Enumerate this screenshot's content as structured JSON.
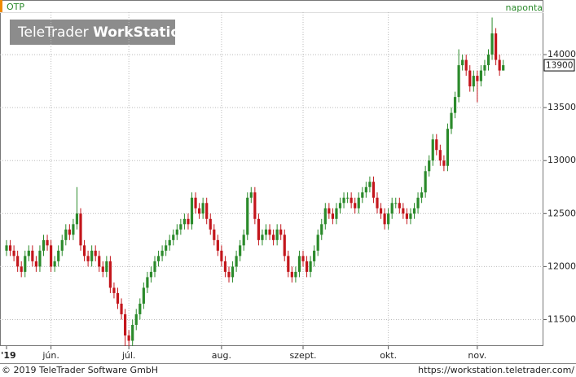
{
  "header": {
    "symbol": "OTP",
    "interval": "naponta"
  },
  "watermark": [
    "TeleTrader",
    "WorkStation"
  ],
  "footer": {
    "copyright": "© 2019 TeleTrader Software GmbH",
    "url": "https://workstation.teletrader.com/"
  },
  "chart_data": {
    "type": "candlestick",
    "categories": [
      "'19",
      null,
      null,
      null,
      null,
      null,
      null,
      null,
      null,
      null,
      null,
      null,
      "jún.",
      null,
      null,
      null,
      null,
      null,
      null,
      null,
      null,
      null,
      null,
      null,
      null,
      null,
      null,
      null,
      null,
      null,
      null,
      null,
      null,
      "júl.",
      null,
      null,
      null,
      null,
      null,
      null,
      null,
      null,
      null,
      null,
      null,
      null,
      null,
      null,
      null,
      null,
      null,
      null,
      null,
      null,
      null,
      null,
      null,
      null,
      "aug.",
      null,
      null,
      null,
      null,
      null,
      null,
      null,
      null,
      null,
      null,
      null,
      null,
      null,
      null,
      null,
      null,
      null,
      null,
      null,
      null,
      null,
      "szept.",
      null,
      null,
      null,
      null,
      null,
      null,
      null,
      null,
      null,
      null,
      null,
      null,
      null,
      null,
      null,
      null,
      null,
      null,
      null,
      null,
      null,
      null,
      "okt.",
      null,
      null,
      null,
      null,
      null,
      null,
      null,
      null,
      null,
      null,
      null,
      null,
      null,
      null,
      null,
      null,
      null,
      null,
      null,
      null,
      null,
      null,
      null,
      "nov.",
      null,
      null,
      null,
      null,
      null,
      null,
      null
    ],
    "open": [
      12150,
      12200,
      12150,
      12100,
      12000,
      11950,
      12100,
      12150,
      12050,
      12000,
      12150,
      12250,
      12200,
      12000,
      12050,
      12150,
      12250,
      12350,
      12300,
      12400,
      12500,
      12200,
      12100,
      12050,
      12150,
      12100,
      12000,
      11950,
      12050,
      11800,
      11750,
      11650,
      11550,
      11350,
      11300,
      11450,
      11550,
      11650,
      11800,
      11900,
      11950,
      12050,
      12100,
      12150,
      12200,
      12250,
      12300,
      12350,
      12400,
      12450,
      12400,
      12650,
      12550,
      12500,
      12600,
      12450,
      12350,
      12250,
      12150,
      12050,
      11950,
      11900,
      12000,
      12100,
      12200,
      12300,
      12650,
      12700,
      12450,
      12250,
      12300,
      12350,
      12300,
      12250,
      12350,
      12300,
      12100,
      11950,
      11900,
      11950,
      12100,
      12050,
      11950,
      12050,
      12150,
      12300,
      12400,
      12550,
      12500,
      12450,
      12550,
      12600,
      12650,
      12650,
      12600,
      12550,
      12650,
      12700,
      12750,
      12800,
      12650,
      12550,
      12500,
      12400,
      12500,
      12600,
      12600,
      12550,
      12500,
      12450,
      12500,
      12550,
      12650,
      12700,
      12900,
      13000,
      13200,
      13100,
      13000,
      12950,
      13300,
      13450,
      13600,
      13900,
      13950,
      13850,
      13700,
      13800,
      13750,
      13850,
      13900,
      14000,
      14200,
      13950,
      13850
    ],
    "high": [
      12250,
      12250,
      12200,
      12150,
      12050,
      12150,
      12200,
      12200,
      12100,
      12200,
      12300,
      12300,
      12250,
      12100,
      12200,
      12300,
      12400,
      12400,
      12450,
      12750,
      12550,
      12250,
      12150,
      12200,
      12200,
      12150,
      12050,
      12100,
      12100,
      11850,
      11800,
      11700,
      11600,
      11400,
      11500,
      11600,
      11700,
      11850,
      11950,
      12000,
      12100,
      12150,
      12200,
      12250,
      12300,
      12350,
      12400,
      12450,
      12500,
      12500,
      12700,
      12700,
      12600,
      12650,
      12650,
      12500,
      12400,
      12300,
      12200,
      12100,
      12000,
      12050,
      12150,
      12250,
      12350,
      12700,
      12750,
      12750,
      12500,
      12350,
      12400,
      12400,
      12350,
      12400,
      12400,
      12350,
      12150,
      12000,
      12000,
      12150,
      12150,
      12100,
      12100,
      12200,
      12350,
      12450,
      12600,
      12600,
      12550,
      12600,
      12650,
      12700,
      12700,
      12700,
      12650,
      12700,
      12750,
      12800,
      12850,
      12850,
      12700,
      12600,
      12550,
      12550,
      12650,
      12650,
      12650,
      12600,
      12550,
      12550,
      12600,
      12700,
      12750,
      12950,
      13050,
      13250,
      13250,
      13150,
      13050,
      13350,
      13500,
      13650,
      14050,
      14000,
      14000,
      13900,
      13850,
      13850,
      13900,
      13950,
      14050,
      14350,
      14250,
      14000,
      13950
    ],
    "low": [
      12100,
      12100,
      12050,
      11950,
      11900,
      11900,
      12050,
      12000,
      11950,
      11950,
      12100,
      12150,
      11950,
      11950,
      12000,
      12100,
      12200,
      12250,
      12250,
      12350,
      12150,
      12050,
      12000,
      12000,
      12050,
      11950,
      11900,
      11900,
      11750,
      11700,
      11600,
      11500,
      11250,
      11250,
      11250,
      11400,
      11500,
      11600,
      11750,
      11850,
      11900,
      12000,
      12050,
      12100,
      12150,
      12200,
      12250,
      12300,
      12350,
      12350,
      12350,
      12500,
      12450,
      12450,
      12400,
      12300,
      12200,
      12100,
      12000,
      11900,
      11850,
      11850,
      11950,
      12050,
      12150,
      12250,
      12600,
      12400,
      12200,
      12200,
      12250,
      12250,
      12200,
      12200,
      12250,
      12050,
      11900,
      11850,
      11850,
      11900,
      12000,
      11900,
      11900,
      12000,
      12100,
      12250,
      12350,
      12450,
      12400,
      12400,
      12500,
      12550,
      12600,
      12550,
      12500,
      12500,
      12600,
      12650,
      12700,
      12600,
      12500,
      12450,
      12350,
      12350,
      12450,
      12550,
      12500,
      12450,
      12400,
      12400,
      12450,
      12500,
      12600,
      12650,
      12850,
      12950,
      13050,
      12950,
      12900,
      12900,
      13250,
      13400,
      13550,
      13850,
      13800,
      13650,
      13650,
      13550,
      13700,
      13800,
      13850,
      13950,
      13900,
      13800,
      13850
    ],
    "close": [
      12200,
      12150,
      12100,
      12000,
      11950,
      12100,
      12150,
      12050,
      12000,
      12150,
      12250,
      12200,
      12000,
      12050,
      12150,
      12250,
      12350,
      12300,
      12400,
      12500,
      12200,
      12100,
      12050,
      12150,
      12100,
      12000,
      11950,
      12050,
      11800,
      11750,
      11650,
      11550,
      11350,
      11300,
      11450,
      11550,
      11650,
      11800,
      11900,
      11950,
      12050,
      12100,
      12150,
      12200,
      12250,
      12300,
      12350,
      12400,
      12450,
      12400,
      12650,
      12550,
      12500,
      12600,
      12450,
      12350,
      12250,
      12150,
      12050,
      11950,
      11900,
      12000,
      12100,
      12200,
      12300,
      12650,
      12700,
      12450,
      12250,
      12300,
      12350,
      12300,
      12250,
      12350,
      12300,
      12100,
      11950,
      11900,
      11950,
      12100,
      12050,
      11950,
      12050,
      12150,
      12300,
      12400,
      12550,
      12500,
      12450,
      12550,
      12600,
      12650,
      12650,
      12600,
      12550,
      12650,
      12700,
      12750,
      12800,
      12650,
      12550,
      12500,
      12400,
      12500,
      12600,
      12600,
      12550,
      12500,
      12450,
      12500,
      12550,
      12650,
      12700,
      12900,
      13000,
      13200,
      13100,
      13000,
      12950,
      13300,
      13450,
      13600,
      13900,
      13950,
      13850,
      13700,
      13800,
      13750,
      13850,
      13900,
      14000,
      14200,
      13950,
      13850,
      13900
    ],
    "up_color": "#2b8a2b",
    "down_color": "#c3161c",
    "ylim": [
      11250,
      14400
    ],
    "yticks": [
      11500,
      12000,
      12500,
      13000,
      13500,
      14000
    ],
    "grid": true
  }
}
